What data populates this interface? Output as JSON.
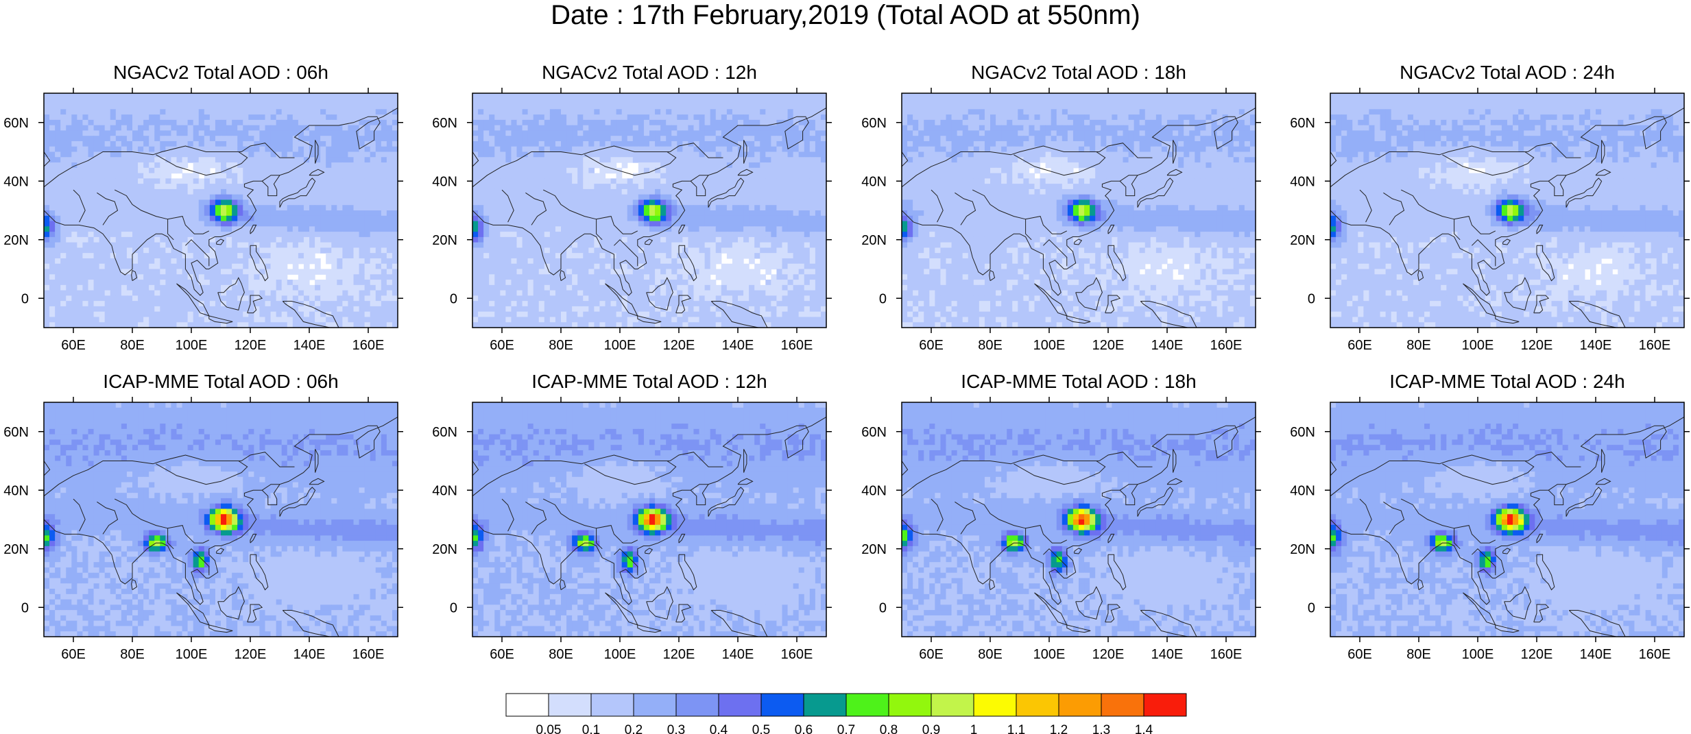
{
  "title": "Date : 17th February,2019 (Total AOD at 550nm)",
  "map_extent": {
    "lon": [
      50,
      170
    ],
    "lat": [
      -10,
      70
    ]
  },
  "lon_ticks": [
    "60E",
    "80E",
    "100E",
    "120E",
    "140E",
    "160E"
  ],
  "lat_ticks": [
    "60N",
    "40N",
    "20N",
    "0"
  ],
  "panels": [
    {
      "title": "NGACv2 Total AOD : 06h",
      "model": "NGACv2",
      "hour": 6
    },
    {
      "title": "NGACv2 Total AOD : 12h",
      "model": "NGACv2",
      "hour": 12
    },
    {
      "title": "NGACv2 Total AOD : 18h",
      "model": "NGACv2",
      "hour": 18
    },
    {
      "title": "NGACv2 Total AOD : 24h",
      "model": "NGACv2",
      "hour": 24
    },
    {
      "title": "ICAP-MME Total AOD : 06h",
      "model": "ICAP-MME",
      "hour": 6
    },
    {
      "title": "ICAP-MME Total AOD : 12h",
      "model": "ICAP-MME",
      "hour": 12
    },
    {
      "title": "ICAP-MME Total AOD : 18h",
      "model": "ICAP-MME",
      "hour": 18
    },
    {
      "title": "ICAP-MME Total AOD : 24h",
      "model": "ICAP-MME",
      "hour": 24
    }
  ],
  "colorbar": {
    "labels": [
      "0.05",
      "0.1",
      "0.2",
      "0.3",
      "0.4",
      "0.5",
      "0.6",
      "0.7",
      "0.8",
      "0.9",
      "1",
      "1.1",
      "1.2",
      "1.3",
      "1.4"
    ],
    "colors": [
      "#ffffff",
      "#d3defd",
      "#b4c6fb",
      "#94aff8",
      "#7d94f4",
      "#6d70f0",
      "#0c5bf1",
      "#079a8f",
      "#4ef21a",
      "#92f70d",
      "#c2f44a",
      "#fcfb02",
      "#fbc603",
      "#fc9c03",
      "#f9720b",
      "#f91d0b"
    ]
  }
}
